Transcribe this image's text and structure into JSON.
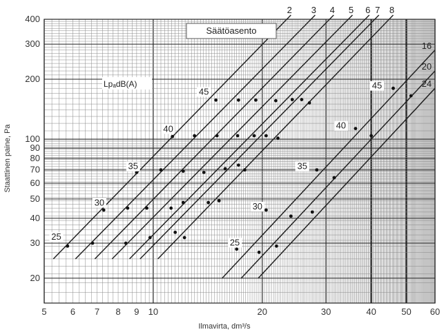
{
  "chart_data": {
    "type": "line",
    "xscale": "log",
    "yscale": "log",
    "xlim": [
      5,
      60
    ],
    "ylim": [
      15,
      400
    ],
    "xlabel": "Ilmavirta, dm³/s",
    "ylabel": "Staattinen paine, Pa",
    "grid": true,
    "legend_box": "Säätöasento",
    "lp_label": "LpₐdB(A)",
    "x_ticks": [
      5,
      6,
      7,
      8,
      9,
      10,
      20,
      30,
      40,
      50,
      60
    ],
    "y_ticks": [
      20,
      30,
      40,
      50,
      60,
      70,
      80,
      90,
      100,
      200,
      300,
      400
    ],
    "series": [
      {
        "name": "2",
        "x": [
          5.3,
          24
        ],
        "y": [
          25,
          420
        ]
      },
      {
        "name": "3",
        "x": [
          6.1,
          28
        ],
        "y": [
          25,
          420
        ]
      },
      {
        "name": "4",
        "x": [
          6.9,
          31.5
        ],
        "y": [
          25,
          420
        ]
      },
      {
        "name": "5",
        "x": [
          7.7,
          35.5
        ],
        "y": [
          25,
          420
        ]
      },
      {
        "name": "6",
        "x": [
          8.6,
          39.5
        ],
        "y": [
          25,
          420
        ]
      },
      {
        "name": "7",
        "x": [
          9.2,
          42
        ],
        "y": [
          25,
          420
        ]
      },
      {
        "name": "8",
        "x": [
          10.3,
          46
        ],
        "y": [
          25,
          420
        ]
      },
      {
        "name": "16",
        "x": [
          15.5,
          60
        ],
        "y": [
          20,
          280
        ]
      },
      {
        "name": "20",
        "x": [
          17.5,
          60
        ],
        "y": [
          20,
          220
        ]
      },
      {
        "name": "24",
        "x": [
          19.5,
          60
        ],
        "y": [
          20,
          180
        ]
      }
    ],
    "sound_levels": [
      {
        "label": "25",
        "x": 5.4,
        "y": 31
      },
      {
        "label": "30",
        "x": 7.1,
        "y": 46
      },
      {
        "label": "35",
        "x": 8.8,
        "y": 70
      },
      {
        "label": "40",
        "x": 11.0,
        "y": 108
      },
      {
        "label": "45",
        "x": 13.8,
        "y": 166
      },
      {
        "label": "25",
        "x": 16.8,
        "y": 29
      },
      {
        "label": "30",
        "x": 19.4,
        "y": 44
      },
      {
        "label": "35",
        "x": 25.8,
        "y": 70
      },
      {
        "label": "40",
        "x": 33.0,
        "y": 112
      },
      {
        "label": "45",
        "x": 41.5,
        "y": 178
      }
    ],
    "markers": [
      {
        "x": 5.8,
        "y": 29
      },
      {
        "x": 6.8,
        "y": 30
      },
      {
        "x": 8.4,
        "y": 30
      },
      {
        "x": 9.8,
        "y": 32
      },
      {
        "x": 11.5,
        "y": 34
      },
      {
        "x": 12.2,
        "y": 32
      },
      {
        "x": 7.3,
        "y": 44
      },
      {
        "x": 8.5,
        "y": 45
      },
      {
        "x": 9.6,
        "y": 45
      },
      {
        "x": 11.2,
        "y": 45
      },
      {
        "x": 12.1,
        "y": 48
      },
      {
        "x": 14.2,
        "y": 48
      },
      {
        "x": 15.2,
        "y": 49
      },
      {
        "x": 9.0,
        "y": 68
      },
      {
        "x": 10.5,
        "y": 70
      },
      {
        "x": 12.1,
        "y": 69
      },
      {
        "x": 13.8,
        "y": 68
      },
      {
        "x": 15.8,
        "y": 71
      },
      {
        "x": 17.2,
        "y": 74
      },
      {
        "x": 17.9,
        "y": 70
      },
      {
        "x": 11.3,
        "y": 103
      },
      {
        "x": 13.0,
        "y": 104
      },
      {
        "x": 15.0,
        "y": 104
      },
      {
        "x": 17.1,
        "y": 104
      },
      {
        "x": 19.0,
        "y": 104
      },
      {
        "x": 20.5,
        "y": 104
      },
      {
        "x": 22.1,
        "y": 101
      },
      {
        "x": 14.9,
        "y": 157
      },
      {
        "x": 17.2,
        "y": 157
      },
      {
        "x": 19.2,
        "y": 157
      },
      {
        "x": 21.8,
        "y": 156
      },
      {
        "x": 24.2,
        "y": 158
      },
      {
        "x": 25.7,
        "y": 158
      },
      {
        "x": 27.0,
        "y": 152
      },
      {
        "x": 17.0,
        "y": 28
      },
      {
        "x": 19.6,
        "y": 27
      },
      {
        "x": 21.9,
        "y": 29
      },
      {
        "x": 20.5,
        "y": 44
      },
      {
        "x": 24.0,
        "y": 41
      },
      {
        "x": 27.5,
        "y": 43
      },
      {
        "x": 28.3,
        "y": 70
      },
      {
        "x": 31.6,
        "y": 64
      },
      {
        "x": 36.2,
        "y": 113
      },
      {
        "x": 40.0,
        "y": 104
      },
      {
        "x": 46.0,
        "y": 180
      },
      {
        "x": 51.5,
        "y": 165
      }
    ]
  }
}
